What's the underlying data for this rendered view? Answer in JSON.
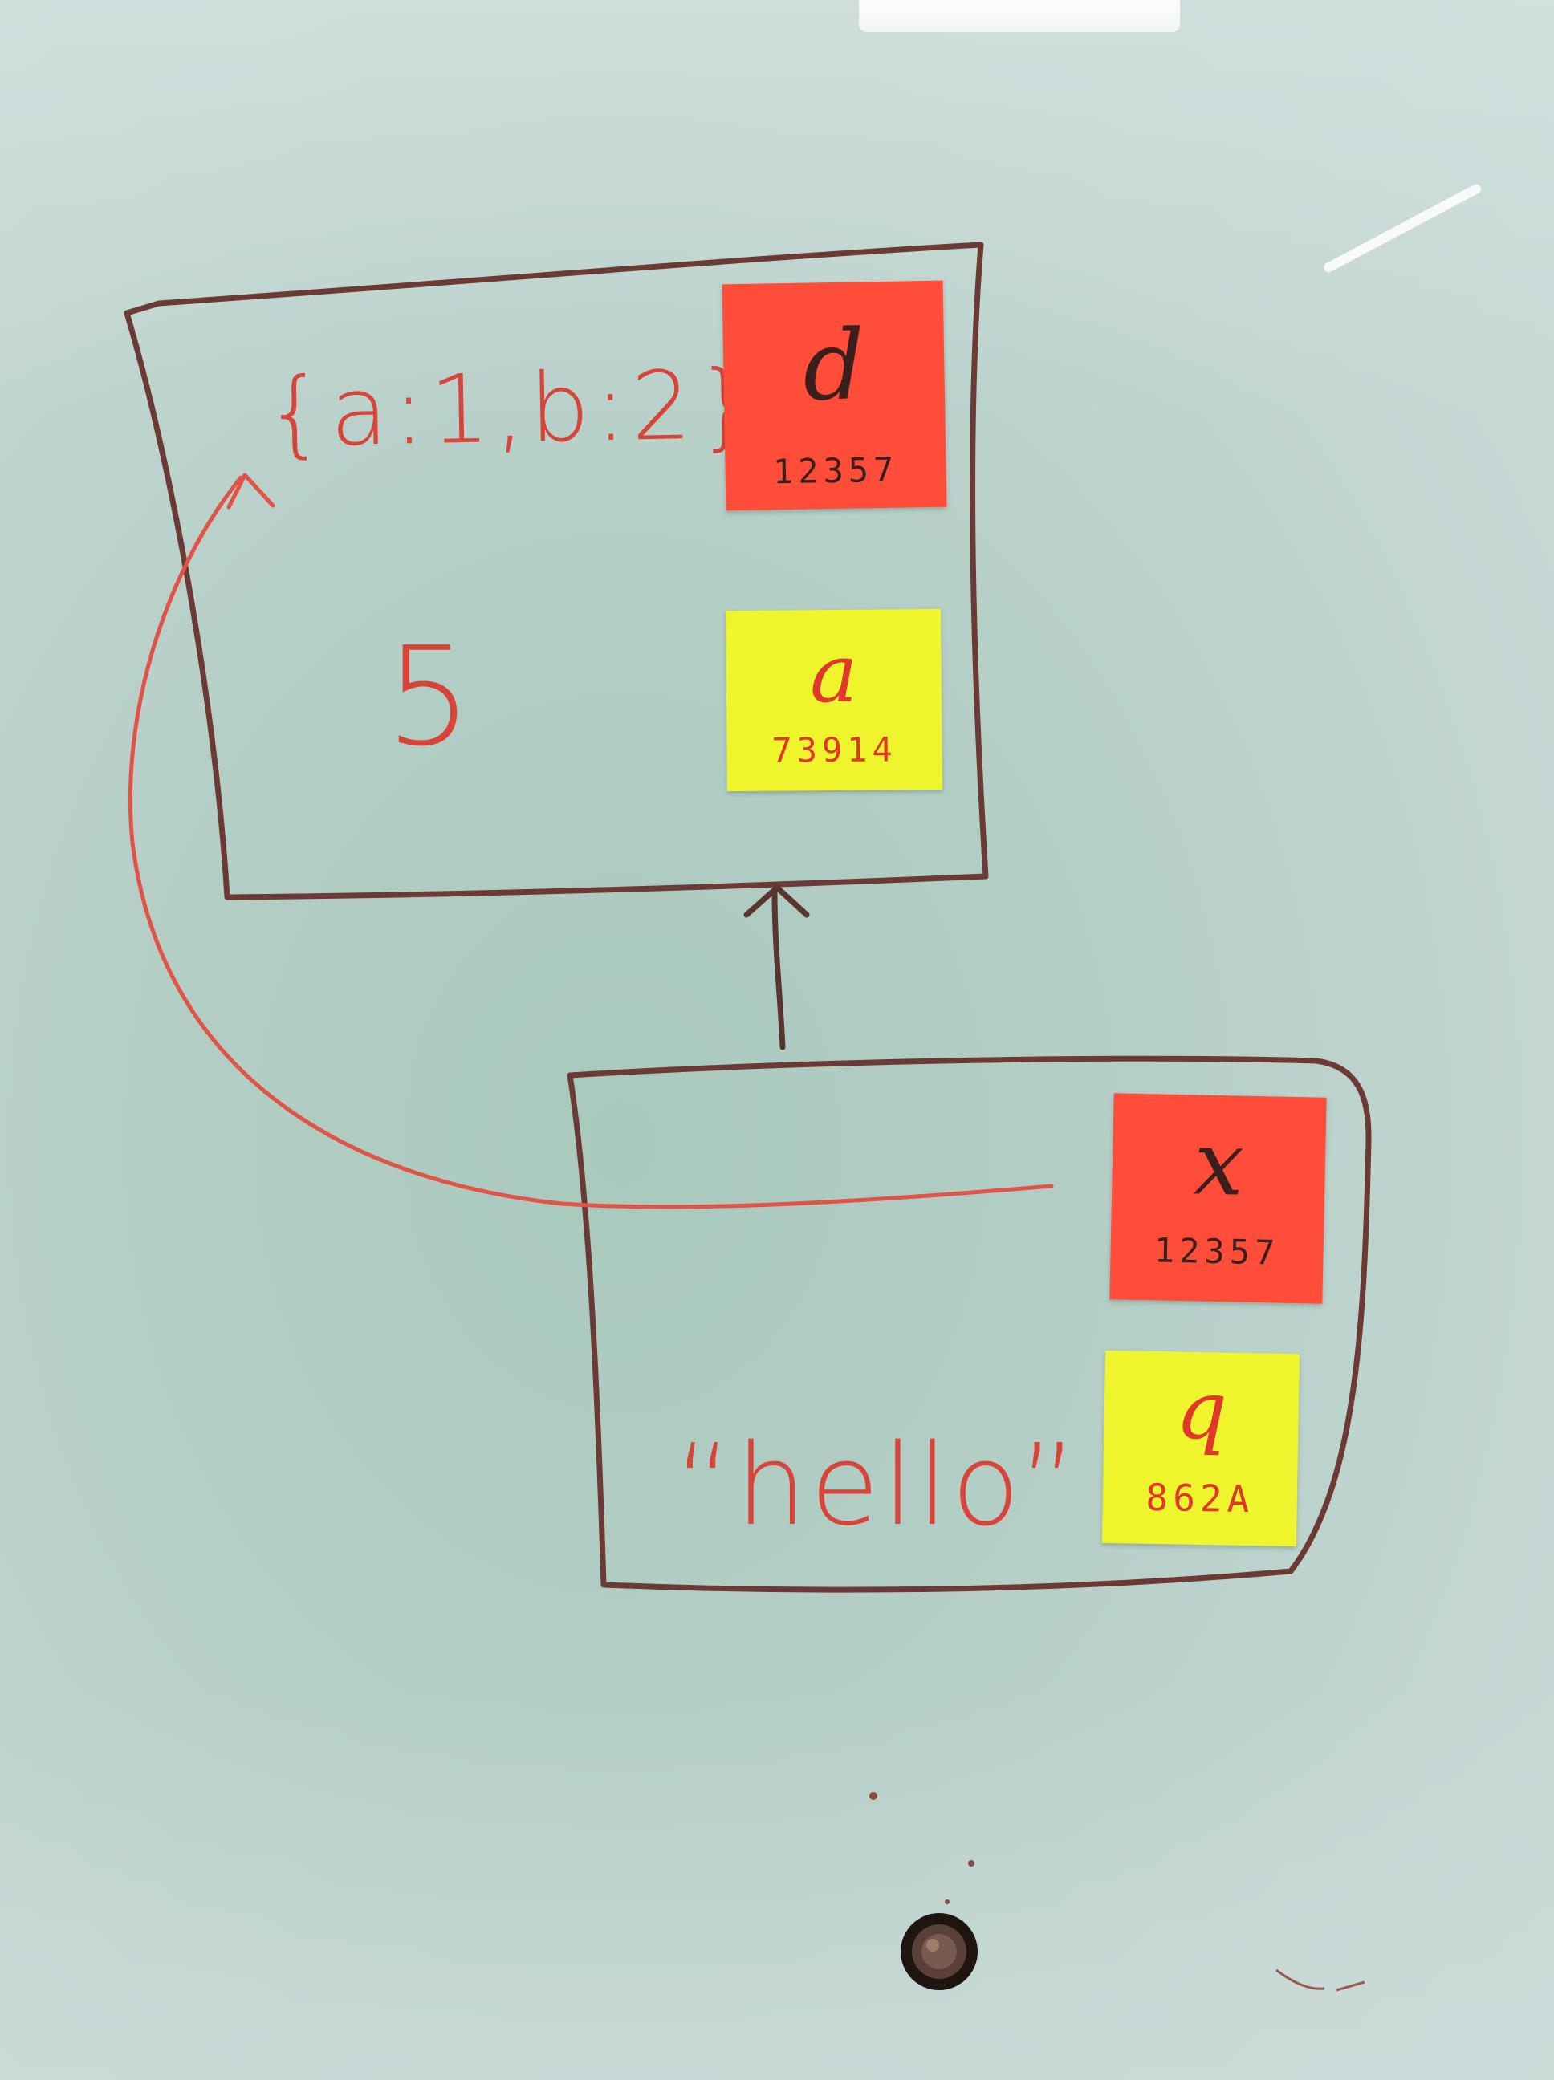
{
  "frame_upper": {
    "value_object": "{a:1,b:2}",
    "value_number": "5",
    "note_d": {
      "label": "d",
      "id": "12357"
    },
    "note_a": {
      "label": "a",
      "id": "73914"
    }
  },
  "frame_lower": {
    "value_string": "“hello”",
    "note_x": {
      "label": "x",
      "id": "12357"
    },
    "note_q": {
      "label": "q",
      "id": "862A"
    }
  },
  "colors": {
    "board": "#b3cec5",
    "frame_ink": "#6b3a35",
    "value_ink": "#d8443a",
    "note_red": "#ff4d3a",
    "note_yellow": "#eef52c"
  }
}
